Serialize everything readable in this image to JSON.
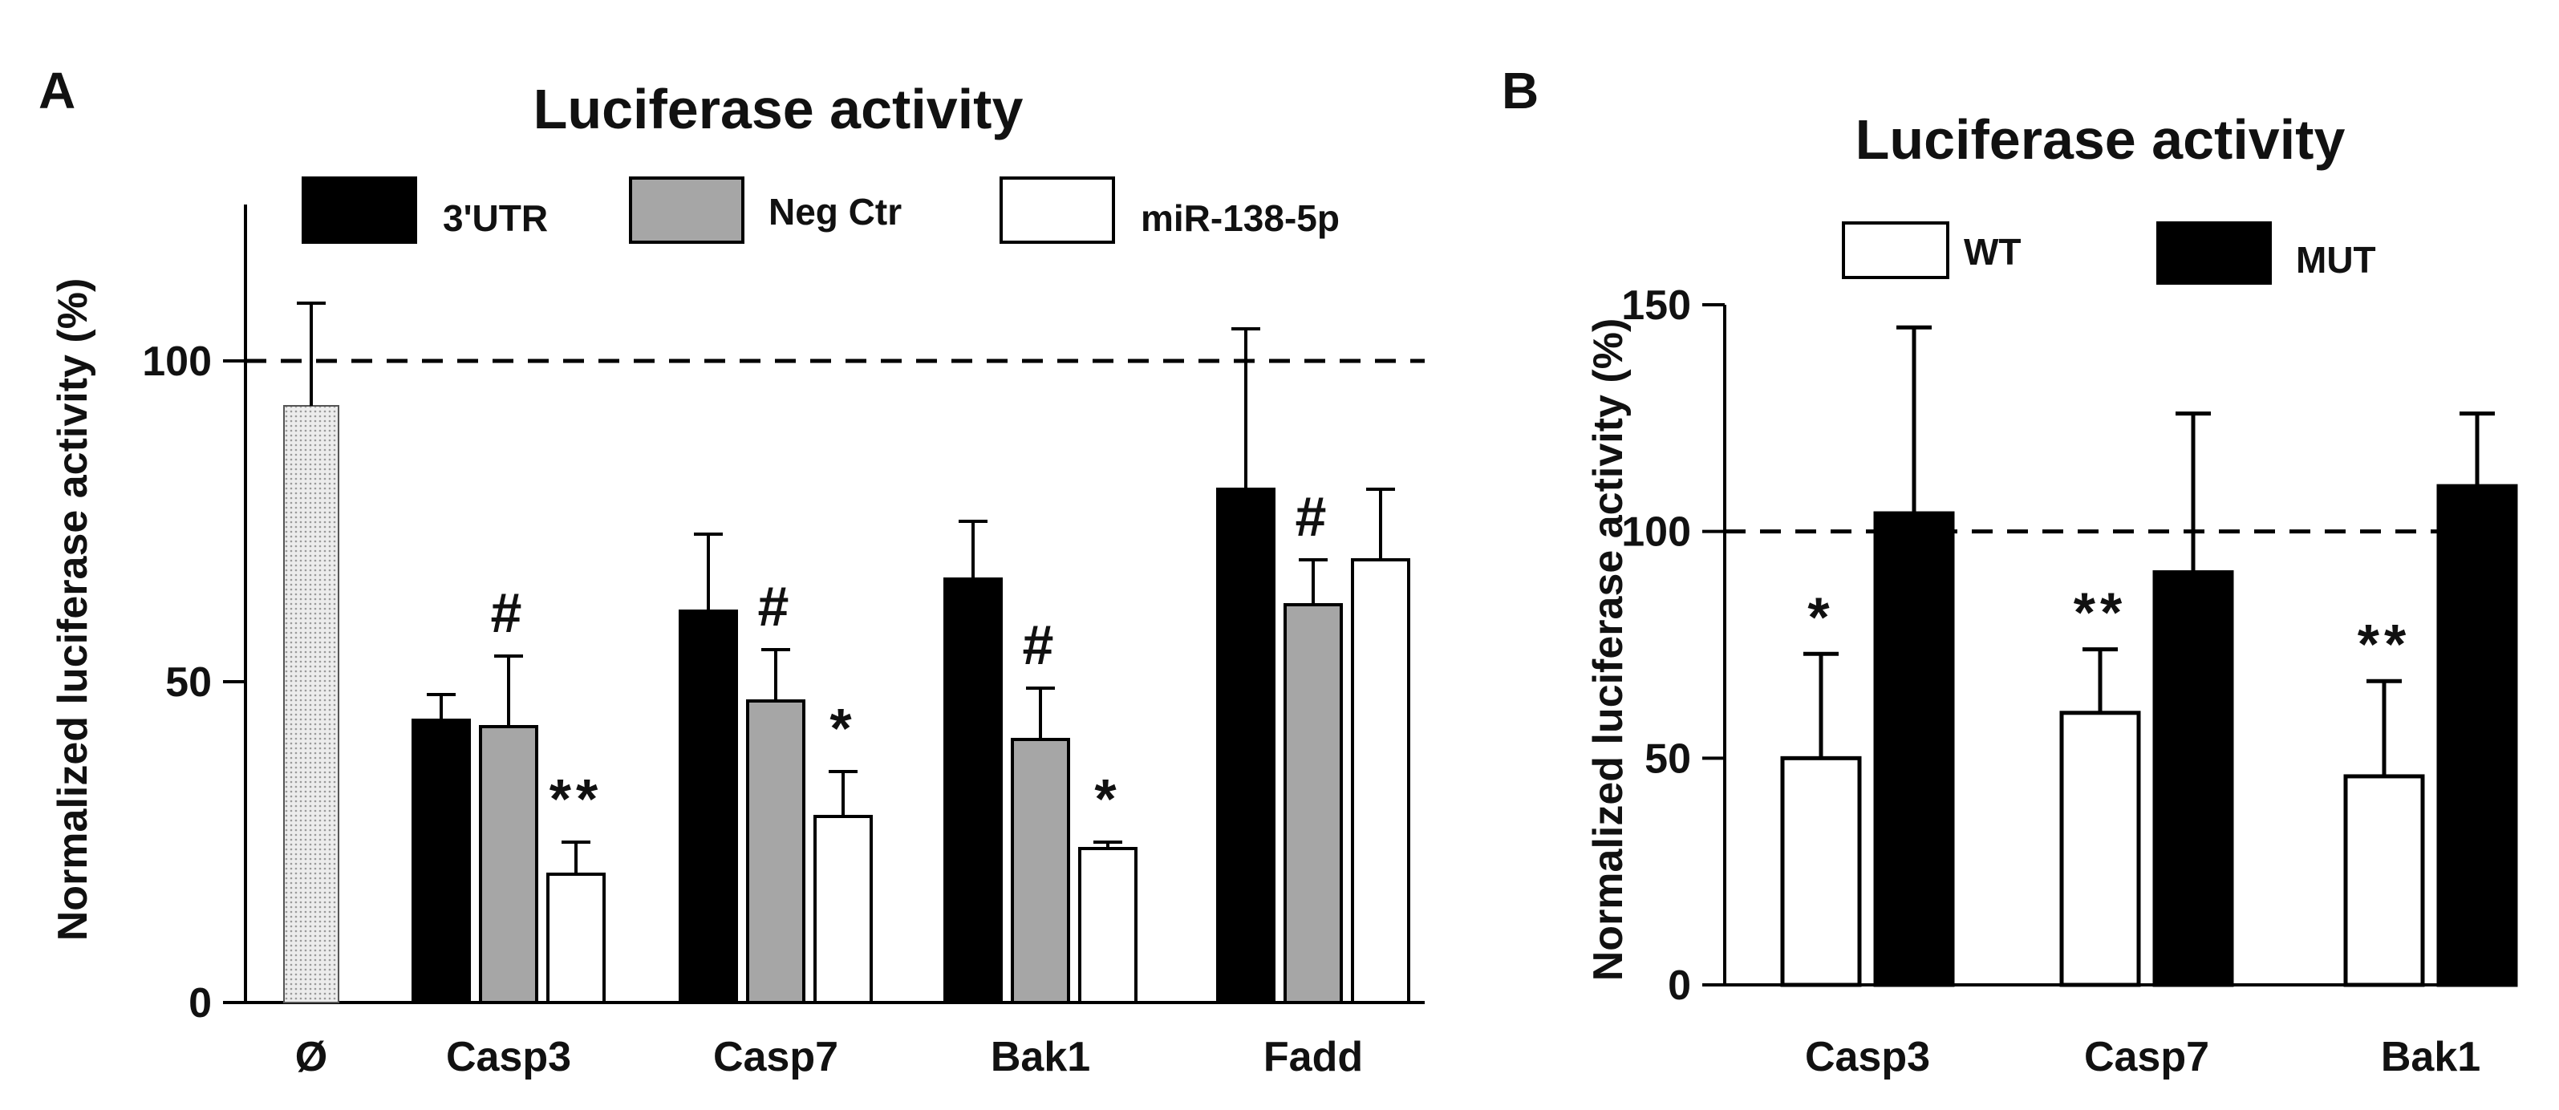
{
  "colors": {
    "black": "#000000",
    "gray": "#a6a6a6",
    "white": "#ffffff",
    "pattern": "#d9d9d9"
  },
  "chart_data": [
    {
      "panel_label": "A",
      "type": "bar",
      "title": "Luciferase activity",
      "ylabel": "Normalized luciferase activity (%)",
      "ylim": [
        0,
        125
      ],
      "yticks": [
        "0",
        "50",
        "100"
      ],
      "reference_line": 100,
      "single_category": {
        "label": "Ø",
        "value": 93,
        "error": 16
      },
      "categories": [
        "Casp3",
        "Casp7",
        "Bak1",
        "Fadd"
      ],
      "series": [
        {
          "name": "3'UTR",
          "color": "black",
          "values": [
            44,
            61,
            66,
            80
          ],
          "errors": [
            4,
            12,
            9,
            25
          ]
        },
        {
          "name": "Neg Ctr",
          "color": "gray",
          "values": [
            43,
            47,
            41,
            62
          ],
          "errors": [
            11,
            8,
            8,
            7
          ]
        },
        {
          "name": "miR-138-5p",
          "color": "white",
          "values": [
            20,
            29,
            24,
            69
          ],
          "errors": [
            5,
            7,
            1,
            11
          ]
        }
      ],
      "annotations": [
        "#",
        "**",
        "#",
        "*",
        "#",
        "*",
        "#"
      ]
    },
    {
      "panel_label": "B",
      "type": "bar",
      "title": "Luciferase activity",
      "ylabel": "Normalized luciferase activity (%)",
      "ylim": [
        0,
        150
      ],
      "yticks": [
        "0",
        "50",
        "100",
        "150"
      ],
      "reference_line": 100,
      "categories": [
        "Casp3",
        "Casp7",
        "Bak1"
      ],
      "series": [
        {
          "name": "WT",
          "color": "white",
          "values": [
            50,
            60,
            46
          ],
          "errors": [
            23,
            14,
            21
          ]
        },
        {
          "name": "MUT",
          "color": "black",
          "values": [
            104,
            91,
            110
          ],
          "errors": [
            41,
            35,
            16
          ]
        }
      ],
      "annotations": [
        "*",
        "**",
        "**"
      ]
    }
  ]
}
